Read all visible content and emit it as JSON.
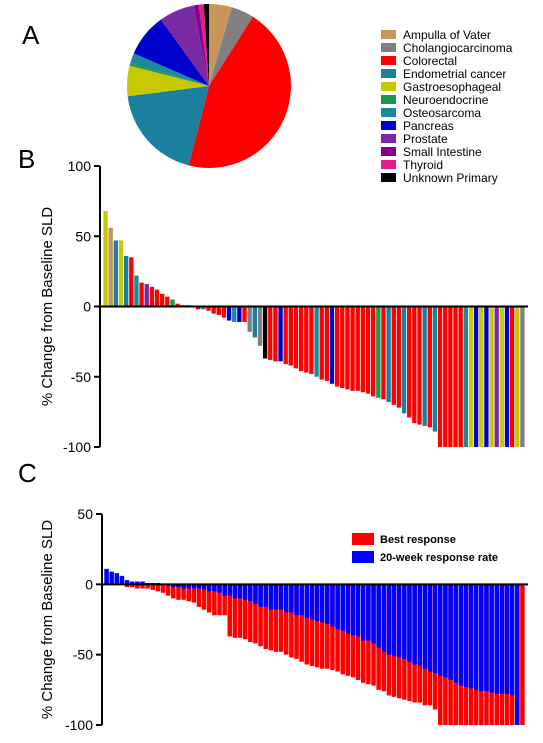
{
  "panels": {
    "a": "A",
    "b": "B",
    "c": "C"
  },
  "colors": {
    "Ampulla of Vater": "#c8965a",
    "Cholangiocarcinoma": "#808080",
    "Colorectal": "#ff0000",
    "Endometrial cancer": "#1b7fa0",
    "Gastroesophageal": "#c8c800",
    "Neuroendocrine": "#1a9850",
    "Osteosarcoma": "#1a8a9a",
    "Pancreas": "#0000cc",
    "Prostate": "#7a2aa0",
    "Small Intestine": "#8b008b",
    "Thyroid": "#e0208a",
    "Unknown Primary": "#000000",
    "best": "#ff0000",
    "week20": "#0000ff"
  },
  "chart_data": [
    {
      "type": "pie",
      "panel": "A",
      "categories": [
        "Ampulla of Vater",
        "Cholangiocarcinoma",
        "Colorectal",
        "Endometrial cancer",
        "Gastroesophageal",
        "Neuroendocrine",
        "Osteosarcoma",
        "Pancreas",
        "Prostate",
        "Small Intestine",
        "Thyroid",
        "Unknown Primary"
      ],
      "values": [
        4.5,
        4.5,
        45,
        19,
        6,
        0.5,
        2,
        8.5,
        7,
        1,
        1,
        1
      ],
      "legend": [
        "Ampulla of Vater",
        "Cholangiocarcinoma",
        "Colorectal",
        "Endometrial cancer",
        "Gastroesophageal",
        "Neuroendocrine",
        "Osteosarcoma",
        "Pancreas",
        "Prostate",
        "Small Intestine",
        "Thyroid",
        "Unknown Primary"
      ]
    },
    {
      "type": "bar",
      "panel": "B",
      "ylabel": "% Change from Baseline SLD",
      "ylim": [
        -100,
        100
      ],
      "yticks": [
        100,
        50,
        0,
        -50,
        -100
      ],
      "values": [
        68,
        56,
        47,
        47,
        36,
        35,
        22,
        17,
        16,
        14,
        12,
        9,
        7,
        5,
        2,
        1,
        1,
        0,
        -2,
        -2,
        -3,
        -5,
        -6,
        -8,
        -10,
        -11,
        -11,
        -11,
        -18,
        -22,
        -28,
        -37,
        -38,
        -39,
        -39,
        -41,
        -42,
        -44,
        -46,
        -47,
        -48,
        -50,
        -52,
        -53,
        -55,
        -57,
        -58,
        -59,
        -60,
        -60,
        -61,
        -62,
        -64,
        -65,
        -66,
        -68,
        -70,
        -72,
        -76,
        -79,
        -83,
        -84,
        -85,
        -86,
        -89,
        -100,
        -100,
        -100,
        -100,
        -100,
        -100,
        -100,
        -100,
        -100,
        -100,
        -100,
        -100,
        -100,
        -100,
        -100,
        -100,
        -100
      ],
      "categories": [
        "Gastroesophageal",
        "Ampulla of Vater",
        "Endometrial cancer",
        "Gastroesophageal",
        "Endometrial cancer",
        "Colorectal",
        "Osteosarcoma",
        "Colorectal",
        "Prostate",
        "Colorectal",
        "Colorectal",
        "Colorectal",
        "Colorectal",
        "Neuroendocrine",
        "Colorectal",
        "Colorectal",
        "Colorectal",
        "Colorectal",
        "Colorectal",
        "Endometrial cancer",
        "Colorectal",
        "Colorectal",
        "Colorectal",
        "Colorectal",
        "Pancreas",
        "Osteosarcoma",
        "Pancreas",
        "Colorectal",
        "Cholangiocarcinoma",
        "Endometrial cancer",
        "Cholangiocarcinoma",
        "Unknown Primary",
        "Colorectal",
        "Colorectal",
        "Pancreas",
        "Colorectal",
        "Colorectal",
        "Colorectal",
        "Colorectal",
        "Colorectal",
        "Colorectal",
        "Osteosarcoma",
        "Colorectal",
        "Colorectal",
        "Pancreas",
        "Colorectal",
        "Colorectal",
        "Colorectal",
        "Colorectal",
        "Colorectal",
        "Colorectal",
        "Colorectal",
        "Colorectal",
        "Neuroendocrine",
        "Colorectal",
        "Endometrial cancer",
        "Colorectal",
        "Colorectal",
        "Endometrial cancer",
        "Colorectal",
        "Colorectal",
        "Colorectal",
        "Endometrial cancer",
        "Colorectal",
        "Endometrial cancer",
        "Colorectal",
        "Colorectal",
        "Colorectal",
        "Colorectal",
        "Colorectal",
        "Osteosarcoma",
        "Gastroesophageal",
        "Pancreas",
        "Gastroesophageal",
        "Pancreas",
        "Gastroesophageal",
        "Prostate",
        "Gastroesophageal",
        "Pancreas",
        "Colorectal",
        "Gastroesophageal",
        "Cholangiocarcinoma"
      ]
    },
    {
      "type": "bar",
      "panel": "C",
      "ylabel": "% Change from Baseline SLD",
      "ylim": [
        -100,
        50
      ],
      "yticks": [
        50,
        0,
        -50,
        -100
      ],
      "series": [
        {
          "name": "Best response",
          "values": [
            0,
            0,
            0,
            0,
            -2,
            -2,
            -3,
            -3,
            -3,
            -4,
            -5,
            -6,
            -8,
            -10,
            -11,
            -11,
            -12,
            -13,
            -16,
            -18,
            -20,
            -22,
            -22,
            -22,
            -37,
            -38,
            -38,
            -39,
            -41,
            -42,
            -44,
            -46,
            -47,
            -48,
            -48,
            -50,
            -52,
            -53,
            -55,
            -57,
            -58,
            -59,
            -60,
            -60,
            -61,
            -62,
            -64,
            -65,
            -66,
            -68,
            -70,
            -71,
            -72,
            -75,
            -76,
            -79,
            -80,
            -81,
            -82,
            -83,
            -84,
            -84,
            -86,
            -86,
            -89,
            -100,
            -100,
            -100,
            -100,
            -100,
            -100,
            -100,
            -100,
            -100,
            -100,
            -100,
            -100,
            -100,
            -100,
            -100,
            -100,
            -100
          ]
        },
        {
          "name": "20-week response rate",
          "values": [
            11,
            9,
            8,
            6,
            3,
            2,
            2,
            2,
            1,
            1,
            1,
            0,
            -1,
            -2,
            -2,
            -3,
            -3,
            -3,
            -3,
            -4,
            -5,
            -5,
            -6,
            -8,
            -8,
            -10,
            -10,
            -11,
            -12,
            -14,
            -16,
            -16,
            -18,
            -18,
            -18,
            -20,
            -20,
            -22,
            -22,
            -24,
            -25,
            -26,
            -27,
            -28,
            -30,
            -32,
            -33,
            -35,
            -36,
            -37,
            -40,
            -40,
            -42,
            -45,
            -48,
            -50,
            -51,
            -52,
            -53,
            -55,
            -57,
            -58,
            -60,
            -62,
            -63,
            -65,
            -66,
            -68,
            -70,
            -72,
            -73,
            -74,
            -75,
            -76,
            -76,
            -77,
            -78,
            -78,
            -78,
            -79,
            -100,
            0
          ]
        }
      ],
      "legend": [
        "Best response",
        "20-week response rate"
      ]
    }
  ]
}
